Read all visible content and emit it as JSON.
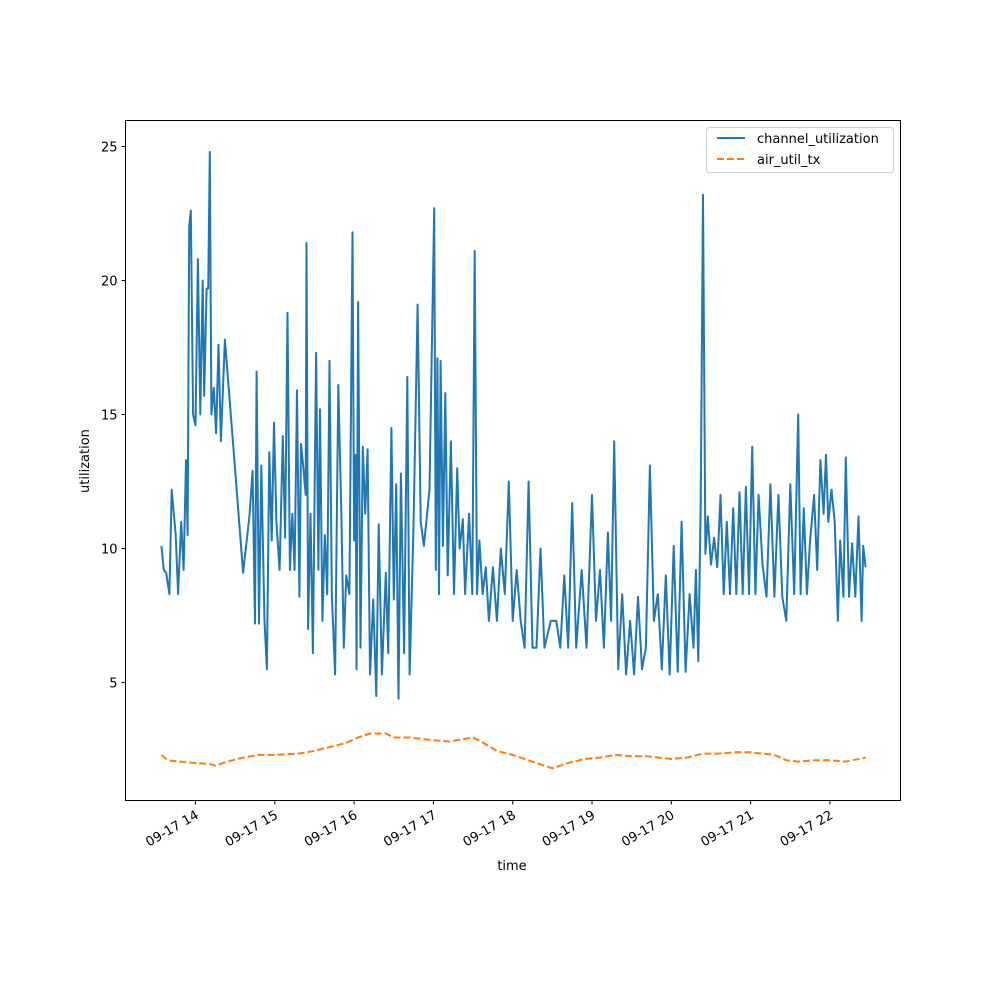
{
  "chart_data": {
    "type": "line",
    "title": "",
    "xlabel": "time",
    "ylabel": "utilization",
    "xlim_hours": [
      13.117,
      22.89
    ],
    "ylim": [
      0.6,
      25.97
    ],
    "grid": false,
    "legend_position": "top-right",
    "x_ticks": [
      {
        "value": 14,
        "label": "09-17 14"
      },
      {
        "value": 15,
        "label": "09-17 15"
      },
      {
        "value": 16,
        "label": "09-17 16"
      },
      {
        "value": 17,
        "label": "09-17 17"
      },
      {
        "value": 18,
        "label": "09-17 18"
      },
      {
        "value": 19,
        "label": "09-17 19"
      },
      {
        "value": 20,
        "label": "09-17 20"
      },
      {
        "value": 21,
        "label": "09-17 21"
      },
      {
        "value": 22,
        "label": "09-17 22"
      }
    ],
    "y_ticks": [
      {
        "value": 5,
        "label": "5"
      },
      {
        "value": 10,
        "label": "10"
      },
      {
        "value": 15,
        "label": "15"
      },
      {
        "value": 20,
        "label": "20"
      },
      {
        "value": 25,
        "label": "25"
      }
    ],
    "series": [
      {
        "name": "channel_utilization",
        "color": "#1f77b4",
        "style": "solid",
        "points": [
          [
            13.57,
            10.1
          ],
          [
            13.6,
            9.2
          ],
          [
            13.63,
            9.1
          ],
          [
            13.67,
            8.3
          ],
          [
            13.7,
            12.2
          ],
          [
            13.75,
            10.5
          ],
          [
            13.78,
            8.3
          ],
          [
            13.82,
            11.0
          ],
          [
            13.85,
            9.2
          ],
          [
            13.88,
            13.3
          ],
          [
            13.9,
            10.5
          ],
          [
            13.92,
            22.0
          ],
          [
            13.94,
            22.6
          ],
          [
            13.97,
            15.0
          ],
          [
            14.0,
            14.6
          ],
          [
            14.03,
            20.8
          ],
          [
            14.06,
            15.0
          ],
          [
            14.09,
            20.0
          ],
          [
            14.11,
            15.7
          ],
          [
            14.14,
            19.7
          ],
          [
            14.16,
            19.7
          ],
          [
            14.18,
            24.8
          ],
          [
            14.2,
            15.0
          ],
          [
            14.23,
            16.0
          ],
          [
            14.26,
            14.3
          ],
          [
            14.29,
            17.6
          ],
          [
            14.32,
            14.0
          ],
          [
            14.37,
            17.8
          ],
          [
            14.5,
            12.9
          ],
          [
            14.6,
            9.1
          ],
          [
            14.68,
            11.2
          ],
          [
            14.72,
            12.9
          ],
          [
            14.75,
            7.2
          ],
          [
            14.77,
            16.6
          ],
          [
            14.8,
            7.2
          ],
          [
            14.83,
            13.1
          ],
          [
            14.87,
            7.3
          ],
          [
            14.9,
            5.5
          ],
          [
            14.93,
            13.6
          ],
          [
            14.96,
            10.3
          ],
          [
            14.99,
            14.7
          ],
          [
            15.02,
            11.0
          ],
          [
            15.06,
            9.2
          ],
          [
            15.1,
            14.2
          ],
          [
            15.13,
            10.4
          ],
          [
            15.16,
            18.8
          ],
          [
            15.19,
            9.2
          ],
          [
            15.22,
            11.3
          ],
          [
            15.25,
            9.2
          ],
          [
            15.28,
            15.9
          ],
          [
            15.31,
            8.2
          ],
          [
            15.33,
            13.9
          ],
          [
            15.36,
            13.0
          ],
          [
            15.39,
            12.0
          ],
          [
            15.4,
            21.4
          ],
          [
            15.42,
            7.0
          ],
          [
            15.45,
            11.3
          ],
          [
            15.48,
            6.1
          ],
          [
            15.52,
            17.3
          ],
          [
            15.55,
            9.2
          ],
          [
            15.57,
            15.2
          ],
          [
            15.6,
            7.3
          ],
          [
            15.63,
            10.5
          ],
          [
            15.66,
            8.3
          ],
          [
            15.69,
            17.0
          ],
          [
            15.72,
            8.2
          ],
          [
            15.76,
            5.3
          ],
          [
            15.8,
            16.1
          ],
          [
            15.84,
            11.2
          ],
          [
            15.87,
            6.3
          ],
          [
            15.9,
            9.0
          ],
          [
            15.94,
            8.3
          ],
          [
            15.98,
            21.8
          ],
          [
            16.0,
            10.3
          ],
          [
            16.02,
            13.5
          ],
          [
            16.03,
            5.5
          ],
          [
            16.05,
            19.2
          ],
          [
            16.08,
            6.3
          ],
          [
            16.11,
            13.8
          ],
          [
            16.14,
            11.3
          ],
          [
            16.17,
            13.7
          ],
          [
            16.2,
            5.3
          ],
          [
            16.24,
            8.1
          ],
          [
            16.28,
            4.5
          ],
          [
            16.31,
            10.9
          ],
          [
            16.35,
            5.3
          ],
          [
            16.4,
            9.1
          ],
          [
            16.43,
            6.1
          ],
          [
            16.47,
            14.5
          ],
          [
            16.5,
            8.1
          ],
          [
            16.53,
            12.4
          ],
          [
            16.56,
            4.4
          ],
          [
            16.59,
            12.8
          ],
          [
            16.63,
            6.1
          ],
          [
            16.67,
            16.4
          ],
          [
            16.7,
            5.3
          ],
          [
            16.75,
            11.0
          ],
          [
            16.8,
            19.1
          ],
          [
            16.84,
            11.0
          ],
          [
            16.88,
            10.1
          ],
          [
            16.95,
            12.2
          ],
          [
            17.01,
            22.7
          ],
          [
            17.03,
            9.2
          ],
          [
            17.05,
            17.1
          ],
          [
            17.07,
            8.3
          ],
          [
            17.09,
            17.0
          ],
          [
            17.12,
            10.1
          ],
          [
            17.15,
            15.8
          ],
          [
            17.18,
            9.0
          ],
          [
            17.22,
            14.0
          ],
          [
            17.26,
            8.3
          ],
          [
            17.3,
            13.0
          ],
          [
            17.33,
            10.0
          ],
          [
            17.37,
            11.1
          ],
          [
            17.4,
            8.3
          ],
          [
            17.45,
            11.3
          ],
          [
            17.49,
            8.3
          ],
          [
            17.52,
            21.1
          ],
          [
            17.55,
            8.3
          ],
          [
            17.58,
            10.3
          ],
          [
            17.62,
            8.3
          ],
          [
            17.66,
            9.3
          ],
          [
            17.7,
            7.3
          ],
          [
            17.75,
            9.3
          ],
          [
            17.8,
            7.3
          ],
          [
            17.85,
            10.0
          ],
          [
            17.9,
            8.3
          ],
          [
            17.95,
            12.5
          ],
          [
            18.0,
            7.3
          ],
          [
            18.05,
            9.2
          ],
          [
            18.1,
            7.3
          ],
          [
            18.15,
            6.3
          ],
          [
            18.2,
            12.5
          ],
          [
            18.25,
            6.3
          ],
          [
            18.3,
            6.3
          ],
          [
            18.35,
            10.0
          ],
          [
            18.4,
            6.3
          ],
          [
            18.48,
            7.3
          ],
          [
            18.55,
            7.3
          ],
          [
            18.6,
            6.3
          ],
          [
            18.65,
            9.0
          ],
          [
            18.7,
            6.3
          ],
          [
            18.75,
            11.7
          ],
          [
            18.8,
            6.3
          ],
          [
            18.87,
            9.2
          ],
          [
            18.93,
            6.3
          ],
          [
            19.0,
            12.0
          ],
          [
            19.05,
            7.3
          ],
          [
            19.1,
            9.2
          ],
          [
            19.15,
            6.3
          ],
          [
            19.2,
            10.6
          ],
          [
            19.24,
            7.3
          ],
          [
            19.28,
            14.0
          ],
          [
            19.33,
            5.5
          ],
          [
            19.38,
            8.3
          ],
          [
            19.43,
            5.3
          ],
          [
            19.48,
            7.3
          ],
          [
            19.53,
            5.3
          ],
          [
            19.58,
            8.2
          ],
          [
            19.63,
            5.5
          ],
          [
            19.68,
            6.3
          ],
          [
            19.73,
            13.1
          ],
          [
            19.78,
            7.3
          ],
          [
            19.83,
            8.3
          ],
          [
            19.88,
            5.5
          ],
          [
            19.93,
            9.0
          ],
          [
            19.98,
            5.3
          ],
          [
            20.03,
            10.1
          ],
          [
            20.08,
            5.4
          ],
          [
            20.13,
            11.0
          ],
          [
            20.18,
            5.4
          ],
          [
            20.23,
            8.3
          ],
          [
            20.28,
            6.3
          ],
          [
            20.31,
            9.2
          ],
          [
            20.34,
            5.8
          ],
          [
            20.37,
            11.7
          ],
          [
            20.4,
            23.2
          ],
          [
            20.43,
            9.8
          ],
          [
            20.46,
            11.2
          ],
          [
            20.5,
            9.4
          ],
          [
            20.54,
            10.4
          ],
          [
            20.58,
            9.3
          ],
          [
            20.62,
            12.0
          ],
          [
            20.66,
            8.3
          ],
          [
            20.7,
            11.0
          ],
          [
            20.74,
            8.3
          ],
          [
            20.78,
            11.5
          ],
          [
            20.82,
            8.3
          ],
          [
            20.86,
            12.1
          ],
          [
            20.9,
            8.3
          ],
          [
            20.94,
            12.3
          ],
          [
            20.98,
            8.3
          ],
          [
            21.02,
            13.8
          ],
          [
            21.06,
            8.3
          ],
          [
            21.1,
            12.0
          ],
          [
            21.15,
            9.4
          ],
          [
            21.2,
            8.2
          ],
          [
            21.25,
            12.4
          ],
          [
            21.3,
            8.2
          ],
          [
            21.35,
            12.0
          ],
          [
            21.4,
            8.2
          ],
          [
            21.45,
            7.3
          ],
          [
            21.5,
            12.4
          ],
          [
            21.55,
            8.3
          ],
          [
            21.6,
            15.0
          ],
          [
            21.63,
            8.3
          ],
          [
            21.67,
            11.5
          ],
          [
            21.71,
            8.3
          ],
          [
            21.75,
            10.3
          ],
          [
            21.8,
            12.0
          ],
          [
            21.84,
            9.2
          ],
          [
            21.88,
            13.3
          ],
          [
            21.92,
            11.3
          ],
          [
            21.95,
            13.5
          ],
          [
            21.98,
            11.0
          ],
          [
            22.02,
            12.2
          ],
          [
            22.06,
            11.0
          ],
          [
            22.1,
            7.3
          ],
          [
            22.13,
            10.3
          ],
          [
            22.17,
            8.2
          ],
          [
            22.2,
            13.4
          ],
          [
            22.24,
            8.2
          ],
          [
            22.28,
            10.2
          ],
          [
            22.32,
            8.2
          ],
          [
            22.36,
            11.2
          ],
          [
            22.4,
            7.3
          ],
          [
            22.42,
            10.1
          ],
          [
            22.45,
            9.3
          ]
        ]
      },
      {
        "name": "air_util_tx",
        "color": "#ff7f0e",
        "style": "dashed",
        "points": [
          [
            13.57,
            2.3
          ],
          [
            13.65,
            2.1
          ],
          [
            13.8,
            2.05
          ],
          [
            14.0,
            2.0
          ],
          [
            14.2,
            1.95
          ],
          [
            14.25,
            1.9
          ],
          [
            14.4,
            2.05
          ],
          [
            14.6,
            2.2
          ],
          [
            14.8,
            2.3
          ],
          [
            15.0,
            2.3
          ],
          [
            15.3,
            2.35
          ],
          [
            15.5,
            2.45
          ],
          [
            15.7,
            2.6
          ],
          [
            15.9,
            2.75
          ],
          [
            16.05,
            2.95
          ],
          [
            16.2,
            3.1
          ],
          [
            16.4,
            3.1
          ],
          [
            16.5,
            2.95
          ],
          [
            16.7,
            2.95
          ],
          [
            17.0,
            2.85
          ],
          [
            17.2,
            2.8
          ],
          [
            17.5,
            2.95
          ],
          [
            17.6,
            2.8
          ],
          [
            17.8,
            2.45
          ],
          [
            18.0,
            2.3
          ],
          [
            18.2,
            2.1
          ],
          [
            18.4,
            1.9
          ],
          [
            18.5,
            1.8
          ],
          [
            18.7,
            2.0
          ],
          [
            18.9,
            2.15
          ],
          [
            19.1,
            2.2
          ],
          [
            19.3,
            2.3
          ],
          [
            19.5,
            2.25
          ],
          [
            19.7,
            2.25
          ],
          [
            20.0,
            2.15
          ],
          [
            20.2,
            2.2
          ],
          [
            20.4,
            2.35
          ],
          [
            20.6,
            2.35
          ],
          [
            20.8,
            2.4
          ],
          [
            21.0,
            2.4
          ],
          [
            21.15,
            2.35
          ],
          [
            21.3,
            2.3
          ],
          [
            21.45,
            2.1
          ],
          [
            21.6,
            2.05
          ],
          [
            21.8,
            2.1
          ],
          [
            22.0,
            2.1
          ],
          [
            22.2,
            2.05
          ],
          [
            22.45,
            2.2
          ]
        ]
      }
    ]
  }
}
